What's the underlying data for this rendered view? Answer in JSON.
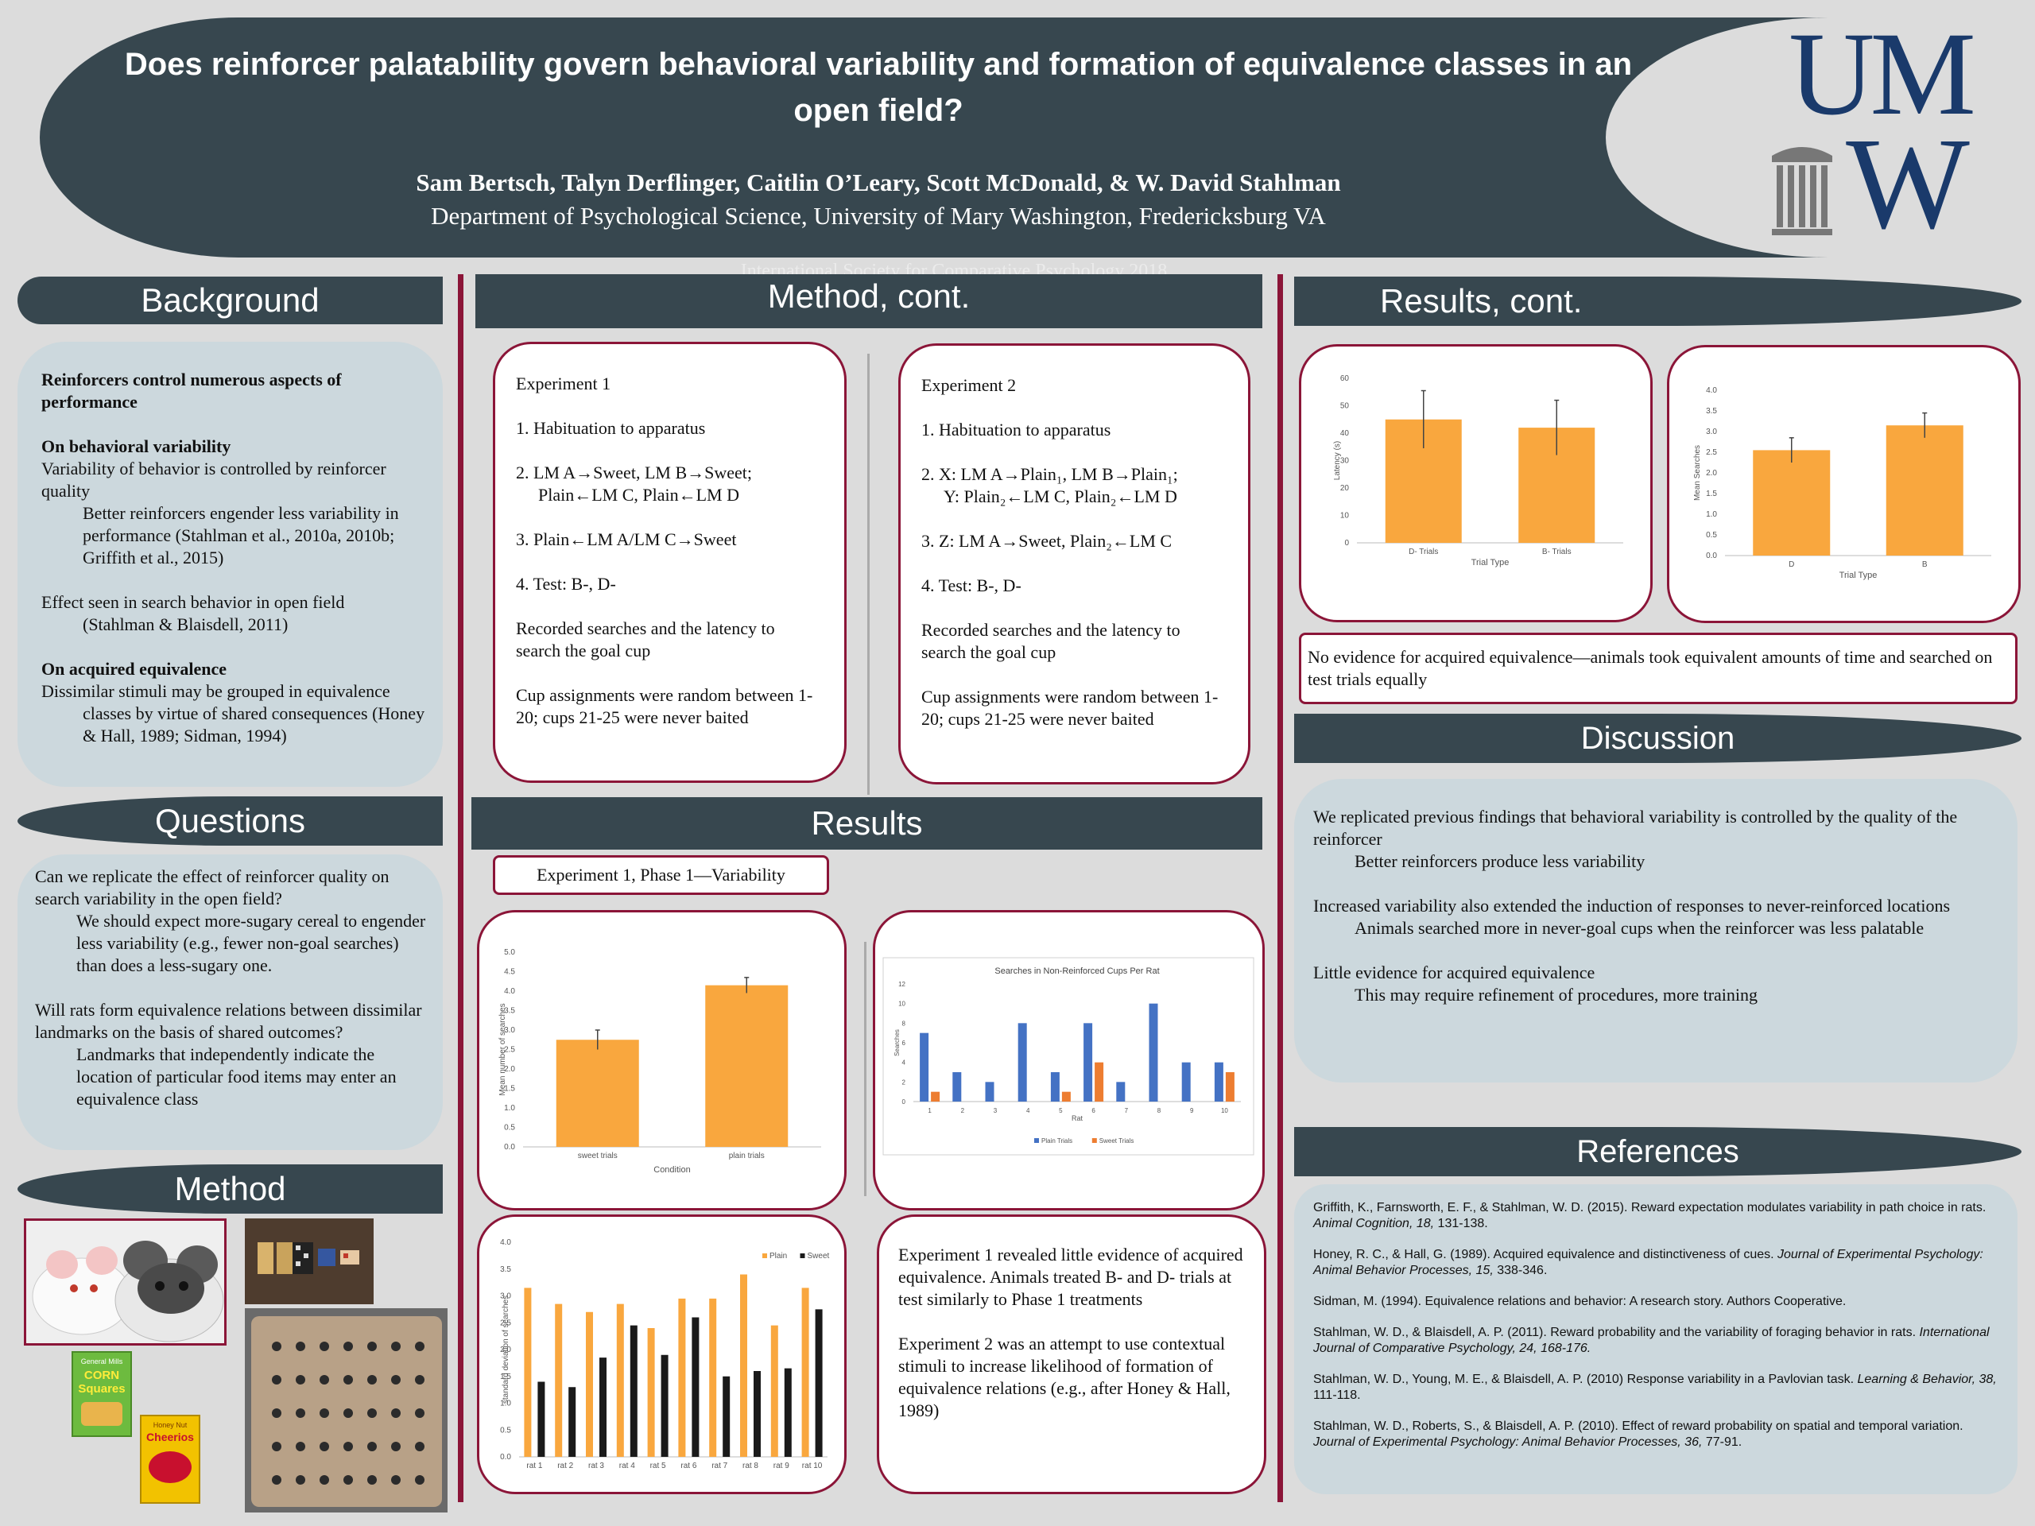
{
  "header": {
    "title": "Does reinforcer palatability govern behavioral variability and formation of equivalence classes in an open field?",
    "authors": "Sam Bertsch, Talyn Derflinger, Caitlin O’Leary, Scott McDonald, & W. David Stahlman",
    "department": "Department of Psychological Science, University of Mary Washington, Fredericksburg VA",
    "conference": "International Society for Comparative Psychology 2018",
    "logo": {
      "line1": "UM",
      "line2": "W"
    }
  },
  "colors": {
    "header": "#37474f",
    "accent": "#8b1538",
    "pill": "#ccd8dd",
    "bar": "#f9a73e",
    "blue": "#4472c4",
    "orange": "#ed7d31"
  },
  "sections": {
    "background": "Background",
    "questions": "Questions",
    "method": "Method",
    "method_cont": "Method, cont.",
    "results": "Results",
    "results_cont": "Results, cont.",
    "discussion": "Discussion",
    "references": "References"
  },
  "background": {
    "heading": "Reinforcers control numerous aspects of performance",
    "sub1": "On behavioral variability",
    "p1": "Variability of behavior is controlled by reinforcer quality",
    "p1_indent": "Better reinforcers engender less variability in performance (Stahlman et al., 2010a, 2010b; Griffith et al., 2015)",
    "p2": "Effect seen in search behavior in open field",
    "p2_indent": "(Stahlman & Blaisdell, 2011)",
    "sub2": "On acquired equivalence",
    "p3": "Dissimilar stimuli may be grouped in equivalence",
    "p3_indent": "classes by virtue of shared consequences (Honey & Hall, 1989; Sidman, 1994)"
  },
  "questions": {
    "q1": "Can we replicate the effect of reinforcer quality on search variability in the open field?",
    "q1_indent": "We should expect more-sugary cereal to engender less variability (e.g., fewer non-goal searches) than does a less-sugary one.",
    "q2": "Will rats form equivalence relations between dissimilar landmarks on the basis of shared outcomes?",
    "q2_indent": "Landmarks that independently indicate the location of particular food items may enter an equivalence class"
  },
  "method_images": {
    "cereal1": {
      "brand": "General Mills",
      "name": "CORN",
      "name2": "Squares"
    },
    "cereal2": {
      "brand": "Honey Nut",
      "name": "Cheerios"
    }
  },
  "exp1": {
    "title": "Experiment 1",
    "s1": "1.  Habituation to apparatus",
    "s2a": "2.  LM A→Sweet, LM B→Sweet;",
    "s2b": "Plain←LM C, Plain←LM D",
    "s3": "3.  Plain←LM A/LM C→Sweet",
    "s4": "4.  Test: B-, D-",
    "p1": "Recorded searches and the latency to search the goal cup",
    "p2": "Cup assignments were random between 1-20; cups 21-25 were never baited"
  },
  "exp2": {
    "title": "Experiment 2",
    "s1": "1.  Habituation to apparatus",
    "s2a": "2.  X: LM A→Plain₁, LM B→Plain₁;",
    "s2b": "Y: Plain₂←LM C, Plain₂←LM D",
    "s3": "3.  Z: LM A→Sweet, Plain₂←LM C",
    "s4": "4.  Test: B-, D-",
    "p1": "Recorded searches and the latency to search the goal cup",
    "p2": "Cup assignments were random between 1-20; cups 21-25 were never baited"
  },
  "results": {
    "phase_label": "Experiment 1, Phase 1—Variability",
    "summary1": "Experiment 1 revealed little evidence of acquired equivalence. Animals treated B- and D- trials at test  similarly to Phase 1 treatments",
    "summary2": "Experiment 2 was an attempt to use contextual stimuli to increase likelihood of formation of equivalence relations (e.g., after Honey & Hall, 1989)"
  },
  "results_cont": {
    "note": "No evidence for acquired equivalence—animals took equivalent amounts of time and searched on test trials equally"
  },
  "discussion": {
    "p1": "We replicated previous findings that behavioral variability is controlled by the quality of the reinforcer",
    "p1_indent": "Better reinforcers produce less variability",
    "p2": "Increased variability also extended the induction of responses to never-reinforced locations",
    "p2_indent": "Animals searched more in never-goal cups when the reinforcer was less palatable",
    "p3": "Little evidence for acquired equivalence",
    "p3_indent": "This may require refinement of procedures, more training"
  },
  "references": [
    {
      "a": "Griffith, K., Farnsworth, E. F., & Stahlman, W. D. (2015). Reward expectation modulates variability in path choice in rats. ",
      "i": "Animal Cognition, 18,",
      "b": " 131-138."
    },
    {
      "a": "Honey, R. C., & Hall, G. (1989). Acquired equivalence and distinctiveness of cues. ",
      "i": "Journal of Experimental Psychology: Animal Behavior Processes, 15,",
      "b": " 338-346."
    },
    {
      "a": "Sidman, M. (1994). Equivalence relations and behavior: A research story. Authors Cooperative.",
      "i": "",
      "b": ""
    },
    {
      "a": "Stahlman, W. D., & Blaisdell, A. P. (2011). Reward probability and the variability of foraging behavior in rats. ",
      "i": "International Journal of Comparative Psychology, 24, 168-176.",
      "b": ""
    },
    {
      "a": "Stahlman, W. D., Young, M. E., & Blaisdell, A. P. (2010) Response variability in a Pavlovian task. ",
      "i": "Learning & Behavior, 38,",
      "b": " 111-118."
    },
    {
      "a": "Stahlman, W. D., Roberts, S., & Blaisdell, A. P. (2010). Effect of reward probability on spatial and temporal variation. ",
      "i": "Journal of Experimental Psychology: Animal Behavior Processes, 36,",
      "b": " 77-91."
    }
  ],
  "chart_data": [
    {
      "id": "mean_searches",
      "type": "bar",
      "categories": [
        "sweet trials",
        "plain trials"
      ],
      "values": [
        2.75,
        4.15
      ],
      "errors": [
        0.25,
        0.2
      ],
      "xlabel": "Condition",
      "ylabel": "Mean number of searches",
      "ylim": [
        0,
        5
      ],
      "yticks": [
        "0.0",
        "0.5",
        "1.0",
        "1.5",
        "2.0",
        "2.5",
        "3.0",
        "3.5",
        "4.0",
        "4.5",
        "5.0"
      ]
    },
    {
      "id": "non_reinforced",
      "type": "bar",
      "title": "Searches in Non-Reinforced Cups Per Rat",
      "categories": [
        "1",
        "2",
        "3",
        "4",
        "5",
        "6",
        "7",
        "8",
        "9",
        "10"
      ],
      "xlabel": "Rat",
      "ylabel": "Searches",
      "ylim": [
        0,
        12
      ],
      "yticks": [
        "0",
        "2",
        "4",
        "6",
        "8",
        "10",
        "12"
      ],
      "series": [
        {
          "name": "Plain Trials",
          "values": [
            7,
            3,
            2,
            8,
            3,
            8,
            2,
            10,
            4,
            4
          ]
        },
        {
          "name": "Sweet Trials",
          "values": [
            1,
            0,
            0,
            0,
            1,
            4,
            0,
            0,
            0,
            3
          ]
        }
      ],
      "legend": "bottom"
    },
    {
      "id": "sd_searches",
      "type": "bar",
      "categories": [
        "rat 1",
        "rat 2",
        "rat 3",
        "rat 4",
        "rat 5",
        "rat 6",
        "rat 7",
        "rat 8",
        "rat 9",
        "rat 10"
      ],
      "ylabel": "standard deviation of searches",
      "ylim": [
        0,
        4
      ],
      "yticks": [
        "0.0",
        "0.5",
        "1.0",
        "1.5",
        "2.0",
        "2.5",
        "3.0",
        "3.5",
        "4.0"
      ],
      "series": [
        {
          "name": "Plain",
          "values": [
            3.15,
            2.85,
            2.7,
            2.85,
            2.4,
            2.95,
            2.95,
            3.4,
            2.45,
            3.15
          ]
        },
        {
          "name": "Sweet",
          "values": [
            1.4,
            1.3,
            1.85,
            2.45,
            1.9,
            2.6,
            1.5,
            1.6,
            1.65,
            2.75
          ]
        }
      ],
      "legend": "top-right"
    },
    {
      "id": "latency",
      "type": "bar",
      "categories": [
        "D- Trials",
        "B- Trials"
      ],
      "values": [
        45,
        42
      ],
      "errors": [
        10.5,
        10
      ],
      "xlabel": "Trial Type",
      "ylabel": "Latency (s)",
      "ylim": [
        0,
        60
      ],
      "yticks": [
        "0",
        "10",
        "20",
        "30",
        "40",
        "50",
        "60"
      ]
    },
    {
      "id": "mean_test_searches",
      "type": "bar",
      "categories": [
        "D",
        "B"
      ],
      "values": [
        2.55,
        3.15
      ],
      "errors": [
        0.3,
        0.3
      ],
      "xlabel": "Trial Type",
      "ylabel": "Mean Searches",
      "ylim": [
        0,
        4
      ],
      "yticks": [
        "0.0",
        "0.5",
        "1.0",
        "1.5",
        "2.0",
        "2.5",
        "3.0",
        "3.5",
        "4.0"
      ]
    }
  ]
}
